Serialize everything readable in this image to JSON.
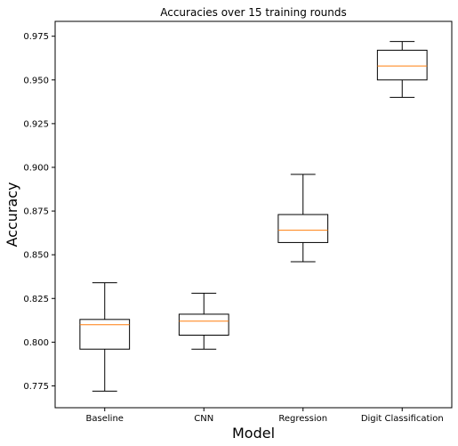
{
  "chart_data": {
    "type": "box",
    "title": "Accuracies over 15 training rounds",
    "xlabel": "Model",
    "ylabel": "Accuracy",
    "ylim": [
      0.7625,
      0.9835
    ],
    "yticks": [
      "0.775",
      "0.800",
      "0.825",
      "0.850",
      "0.875",
      "0.900",
      "0.925",
      "0.950",
      "0.975"
    ],
    "grid": false,
    "colors": {
      "box": "#000000",
      "median": "#ff7f0e",
      "background": "#ffffff"
    },
    "categories": [
      "Baseline",
      "CNN",
      "Regression",
      "Digit Classification"
    ],
    "boxes": [
      {
        "whisker_low": 0.772,
        "q1": 0.796,
        "median": 0.81,
        "q3": 0.813,
        "whisker_high": 0.834
      },
      {
        "whisker_low": 0.796,
        "q1": 0.804,
        "median": 0.812,
        "q3": 0.816,
        "whisker_high": 0.828
      },
      {
        "whisker_low": 0.846,
        "q1": 0.857,
        "median": 0.864,
        "q3": 0.873,
        "whisker_high": 0.896
      },
      {
        "whisker_low": 0.94,
        "q1": 0.95,
        "median": 0.958,
        "q3": 0.967,
        "whisker_high": 0.972
      }
    ]
  }
}
